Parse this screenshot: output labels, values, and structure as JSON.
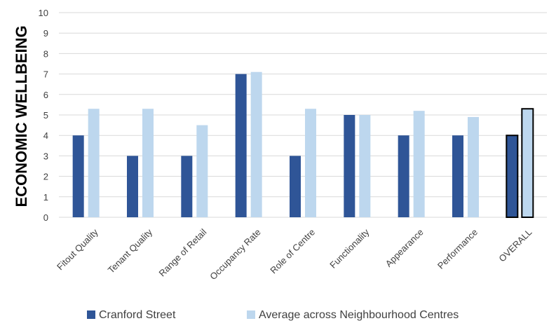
{
  "chart_data": {
    "type": "bar",
    "title": "",
    "xlabel": "",
    "ylabel": "ECONOMIC WELLBEING",
    "ylim": [
      0,
      10
    ],
    "yticks": [
      "0",
      "1",
      "2",
      "3",
      "4",
      "5",
      "6",
      "7",
      "8",
      "9",
      "10"
    ],
    "grid": true,
    "legend_position": "bottom",
    "categories": [
      "Fitout Quality",
      "Tenant Quality",
      "Range of Retail",
      "Occupancy Rate",
      "Role of Centre",
      "Functionality",
      "Appearance",
      "Performance",
      "OVERALL"
    ],
    "highlighted_category": "OVERALL",
    "series": [
      {
        "name": "Cranford Street",
        "color": "#2F5597",
        "values": [
          4,
          3,
          3,
          7,
          3,
          5,
          4,
          4,
          4
        ]
      },
      {
        "name": "Average across Neighbourhood Centres",
        "color": "#BDD7EE",
        "values": [
          5.3,
          5.3,
          4.5,
          7.1,
          5.3,
          5.0,
          5.2,
          4.9,
          5.3
        ]
      }
    ]
  }
}
